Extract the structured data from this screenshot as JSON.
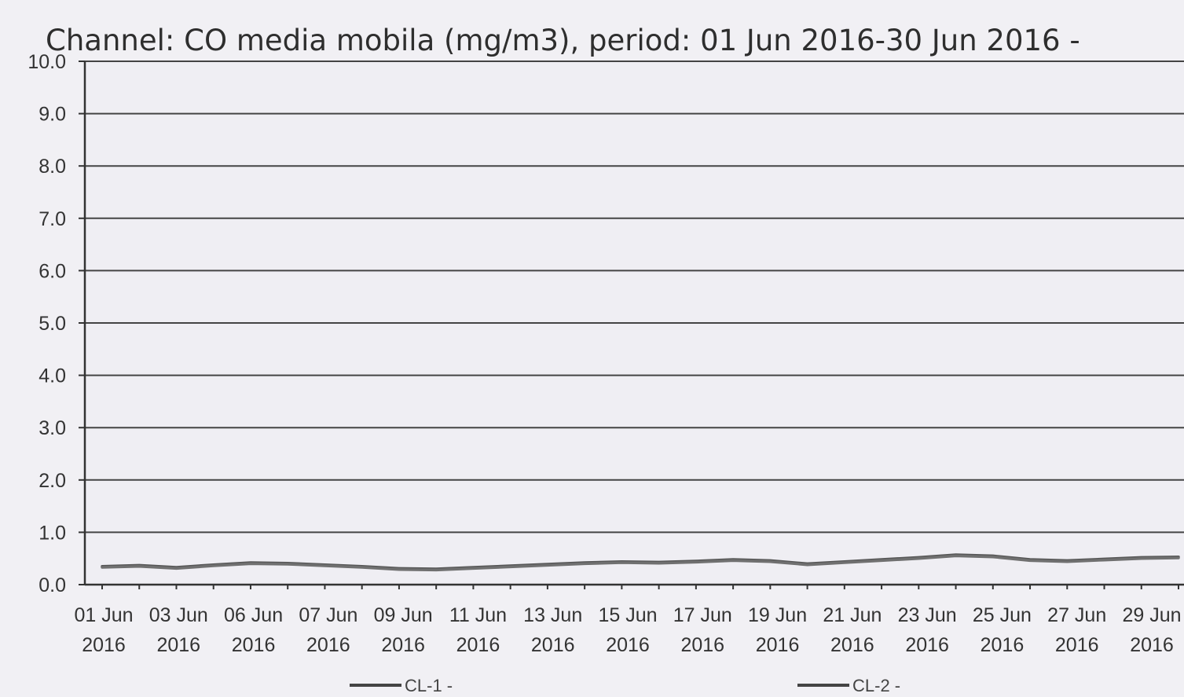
{
  "chart_data": {
    "type": "line",
    "title": "Channel: CO media mobila  (mg/m3), period: 01 Jun 2016-30 Jun 2016 -",
    "xlabel": "",
    "ylabel": "",
    "ylim": [
      0,
      10
    ],
    "yticks": [
      "0.0",
      "1.0",
      "2.0",
      "3.0",
      "4.0",
      "5.0",
      "6.0",
      "7.0",
      "8.0",
      "9.0",
      "10.0"
    ],
    "xlim": [
      "2016-06-01",
      "2016-06-30"
    ],
    "xtick_labels": [
      {
        "line1": "01 Jun",
        "line2": "2016"
      },
      {
        "line1": "03 Jun",
        "line2": "2016"
      },
      {
        "line1": "06 Jun",
        "line2": "2016"
      },
      {
        "line1": "07 Jun",
        "line2": "2016"
      },
      {
        "line1": "09 Jun",
        "line2": "2016"
      },
      {
        "line1": "11 Jun",
        "line2": "2016"
      },
      {
        "line1": "13 Jun",
        "line2": "2016"
      },
      {
        "line1": "15 Jun",
        "line2": "2016"
      },
      {
        "line1": "17 Jun",
        "line2": "2016"
      },
      {
        "line1": "19 Jun",
        "line2": "2016"
      },
      {
        "line1": "21 Jun",
        "line2": "2016"
      },
      {
        "line1": "23 Jun",
        "line2": "2016"
      },
      {
        "line1": "25 Jun",
        "line2": "2016"
      },
      {
        "line1": "27 Jun",
        "line2": "2016"
      },
      {
        "line1": "29 Jun",
        "line2": "2016"
      }
    ],
    "grid": true,
    "legend_placement": "bottom",
    "series": [
      {
        "name": "CL-1 -",
        "color": "#555555",
        "x": [
          "2016-06-01",
          "2016-06-02",
          "2016-06-03",
          "2016-06-04",
          "2016-06-05",
          "2016-06-06",
          "2016-06-07",
          "2016-06-08",
          "2016-06-09",
          "2016-06-10",
          "2016-06-11",
          "2016-06-12",
          "2016-06-13",
          "2016-06-14",
          "2016-06-15",
          "2016-06-16",
          "2016-06-17",
          "2016-06-18",
          "2016-06-19",
          "2016-06-20",
          "2016-06-21",
          "2016-06-22",
          "2016-06-23",
          "2016-06-24",
          "2016-06-25",
          "2016-06-26",
          "2016-06-27",
          "2016-06-28",
          "2016-06-29",
          "2016-06-30"
        ],
        "values": [
          0.35,
          0.37,
          0.33,
          0.38,
          0.42,
          0.41,
          0.38,
          0.35,
          0.31,
          0.3,
          0.33,
          0.36,
          0.39,
          0.42,
          0.44,
          0.43,
          0.45,
          0.48,
          0.46,
          0.4,
          0.44,
          0.48,
          0.52,
          0.57,
          0.55,
          0.48,
          0.46,
          0.49,
          0.52,
          0.53
        ]
      },
      {
        "name": "CL-2 -",
        "color": "#707070",
        "x": [
          "2016-06-01",
          "2016-06-02",
          "2016-06-03",
          "2016-06-04",
          "2016-06-05",
          "2016-06-06",
          "2016-06-07",
          "2016-06-08",
          "2016-06-09",
          "2016-06-10",
          "2016-06-11",
          "2016-06-12",
          "2016-06-13",
          "2016-06-14",
          "2016-06-15",
          "2016-06-16",
          "2016-06-17",
          "2016-06-18",
          "2016-06-19",
          "2016-06-20",
          "2016-06-21",
          "2016-06-22",
          "2016-06-23",
          "2016-06-24",
          "2016-06-25",
          "2016-06-26",
          "2016-06-27",
          "2016-06-28",
          "2016-06-29",
          "2016-06-30"
        ],
        "values": [
          0.33,
          0.35,
          0.31,
          0.36,
          0.4,
          0.39,
          0.36,
          0.33,
          0.29,
          0.28,
          0.31,
          0.34,
          0.37,
          0.4,
          0.42,
          0.41,
          0.43,
          0.46,
          0.44,
          0.38,
          0.42,
          0.46,
          0.5,
          0.55,
          0.53,
          0.46,
          0.44,
          0.47,
          0.5,
          0.51
        ]
      }
    ]
  },
  "colors": {
    "background": "#f1f0f4",
    "plot_background": "#efeef3",
    "grid": "#444444",
    "axis": "#333333"
  }
}
